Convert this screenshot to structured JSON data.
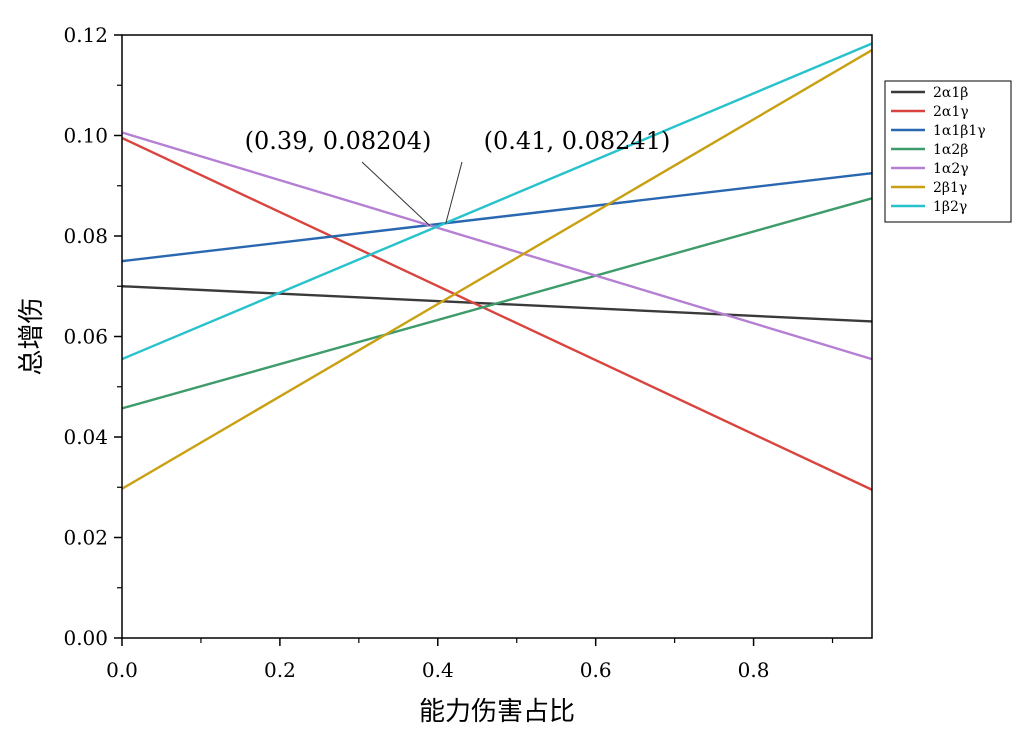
{
  "chart_data": {
    "type": "line",
    "title": "",
    "xlabel": "能力伤害占比",
    "ylabel": "总增伤",
    "xlim": [
      0.0,
      0.95
    ],
    "ylim": [
      0.0,
      0.12
    ],
    "xticks": [
      0.0,
      0.2,
      0.4,
      0.6,
      0.8
    ],
    "xtick_labels": [
      "0.0",
      "0.2",
      "0.4",
      "0.6",
      "0.8"
    ],
    "yticks": [
      0.0,
      0.02,
      0.04,
      0.06,
      0.08,
      0.1,
      0.12
    ],
    "ytick_labels": [
      "0.00",
      "0.02",
      "0.04",
      "0.06",
      "0.08",
      "0.10",
      "0.12"
    ],
    "grid": false,
    "legend_position": "right",
    "series": [
      {
        "name": "2α1β",
        "color": "#3a3a3a",
        "x": [
          0.0,
          0.95
        ],
        "y": [
          0.07,
          0.063
        ]
      },
      {
        "name": "2α1γ",
        "color": "#d9443f",
        "x": [
          0.0,
          0.95
        ],
        "y": [
          0.0995,
          0.0295
        ]
      },
      {
        "name": "1α1β1γ",
        "color": "#2a67b1",
        "x": [
          0.0,
          0.95
        ],
        "y": [
          0.075,
          0.0925
        ]
      },
      {
        "name": "1α2β",
        "color": "#3e9b6a",
        "x": [
          0.0,
          0.95
        ],
        "y": [
          0.0457,
          0.0875
        ]
      },
      {
        "name": "1α2γ",
        "color": "#b57fd4",
        "x": [
          0.0,
          0.95
        ],
        "y": [
          0.1006,
          0.0555
        ]
      },
      {
        "name": "2β1γ",
        "color": "#c9a012",
        "x": [
          0.0,
          0.95
        ],
        "y": [
          0.0297,
          0.117
        ]
      },
      {
        "name": "1β2γ",
        "color": "#27c2cc",
        "x": [
          0.0,
          0.95
        ],
        "y": [
          0.0555,
          0.1183
        ]
      }
    ],
    "annotations": [
      {
        "text": "(0.39, 0.08204)",
        "x": 0.39,
        "y": 0.08204
      },
      {
        "text": "(0.41, 0.08241)",
        "x": 0.41,
        "y": 0.08241
      }
    ]
  }
}
